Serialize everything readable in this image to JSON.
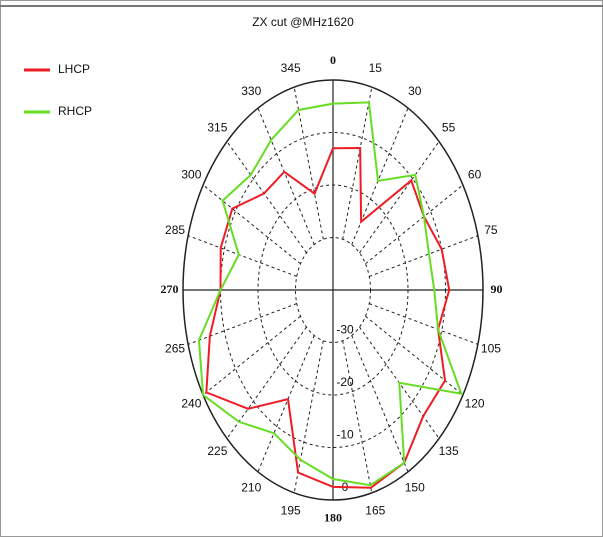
{
  "chart_data": {
    "type": "polar",
    "title": "ZX cut @MHz1620",
    "categories": [
      "0",
      "15",
      "30",
      "55",
      "60",
      "75",
      "90",
      "105",
      "120",
      "135",
      "150",
      "165",
      "180",
      "195",
      "210",
      "225",
      "240",
      "265",
      "270",
      "285",
      "300",
      "315",
      "330",
      "345"
    ],
    "rlim": [
      -40,
      0
    ],
    "rticks": [
      -30,
      -20,
      -10,
      0
    ],
    "grid": true,
    "legend": "upper-left",
    "series": [
      {
        "name": "LHCP",
        "color": "#ee1c25",
        "values": [
          -13,
          -12,
          -25,
          -10.5,
          -12,
          -10,
          -9,
          -11,
          -5.5,
          -6,
          -2,
          -1,
          -2.5,
          -4,
          -16,
          -8,
          -1,
          -6,
          -10,
          -9,
          -9,
          -14,
          -14,
          -21
        ]
      },
      {
        "name": "RHCP",
        "color": "#66dd22",
        "values": [
          -4.5,
          -3,
          -16,
          -9,
          -12,
          -13.5,
          -13,
          -11,
          -0.5,
          -15,
          -2,
          -1.5,
          -4,
          -6.5,
          -8.5,
          -4.5,
          0,
          -3,
          -10,
          -14,
          -6,
          -9,
          -7,
          -4.5
        ]
      }
    ]
  }
}
